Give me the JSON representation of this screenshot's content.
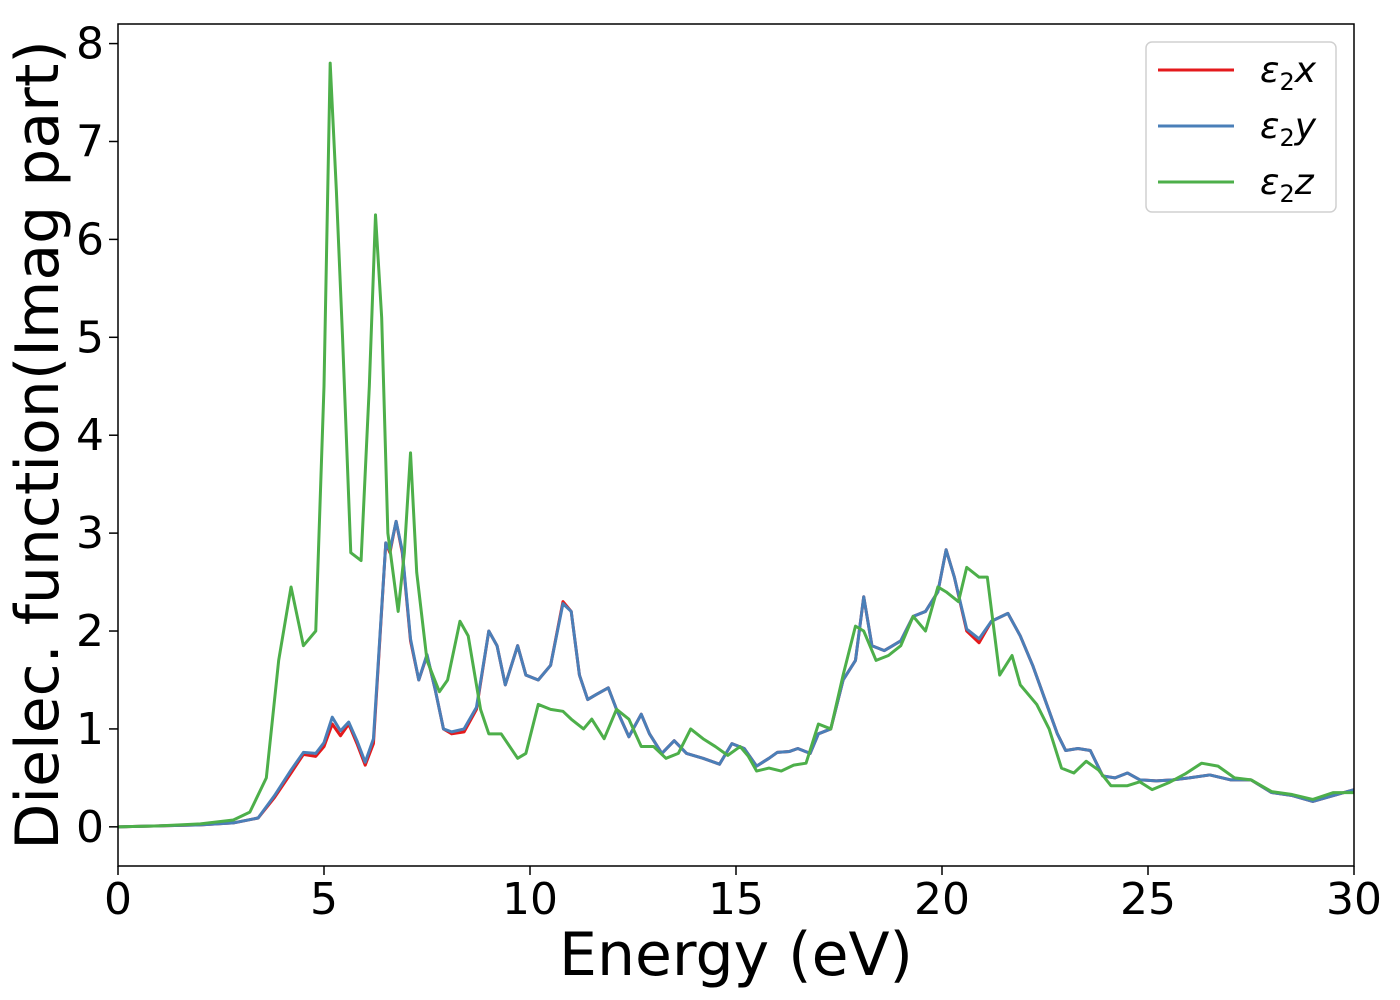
{
  "chart_data": {
    "type": "line",
    "title": "",
    "xlabel": "Energy (eV)",
    "ylabel": "Dielec. function(Imag part)",
    "xlim": [
      0,
      30
    ],
    "ylim": [
      -0.4,
      8.2
    ],
    "xticks": [
      0,
      5,
      10,
      15,
      20,
      25,
      30
    ],
    "yticks": [
      0,
      1,
      2,
      3,
      4,
      5,
      6,
      7,
      8
    ],
    "grid": false,
    "legend_position": "top-right",
    "series": [
      {
        "name": "ε₂x",
        "legend_base": "ε",
        "legend_sub": "2",
        "legend_suffix": "x",
        "color": "#e41a1c",
        "points": [
          [
            0,
            0
          ],
          [
            1,
            0.01
          ],
          [
            2,
            0.02
          ],
          [
            2.8,
            0.04
          ],
          [
            3.4,
            0.09
          ],
          [
            3.8,
            0.3
          ],
          [
            4.2,
            0.55
          ],
          [
            4.5,
            0.74
          ],
          [
            4.8,
            0.72
          ],
          [
            5.0,
            0.82
          ],
          [
            5.2,
            1.05
          ],
          [
            5.4,
            0.93
          ],
          [
            5.6,
            1.05
          ],
          [
            5.8,
            0.85
          ],
          [
            6.0,
            0.63
          ],
          [
            6.2,
            0.85
          ],
          [
            6.5,
            2.9
          ],
          [
            6.6,
            2.8
          ],
          [
            6.75,
            3.12
          ],
          [
            6.9,
            2.8
          ],
          [
            7.1,
            1.9
          ],
          [
            7.3,
            1.5
          ],
          [
            7.5,
            1.75
          ],
          [
            7.7,
            1.4
          ],
          [
            7.9,
            1.0
          ],
          [
            8.1,
            0.95
          ],
          [
            8.4,
            0.97
          ],
          [
            8.7,
            1.2
          ],
          [
            9.0,
            2.0
          ],
          [
            9.2,
            1.85
          ],
          [
            9.4,
            1.45
          ],
          [
            9.7,
            1.85
          ],
          [
            9.9,
            1.55
          ],
          [
            10.2,
            1.5
          ],
          [
            10.5,
            1.65
          ],
          [
            10.8,
            2.3
          ],
          [
            11.0,
            2.2
          ],
          [
            11.2,
            1.55
          ],
          [
            11.4,
            1.3
          ],
          [
            11.6,
            1.35
          ],
          [
            11.9,
            1.42
          ],
          [
            12.1,
            1.2
          ],
          [
            12.4,
            0.92
          ],
          [
            12.7,
            1.15
          ],
          [
            12.9,
            0.95
          ],
          [
            13.2,
            0.75
          ],
          [
            13.5,
            0.88
          ],
          [
            13.8,
            0.75
          ],
          [
            14.2,
            0.7
          ],
          [
            14.6,
            0.64
          ],
          [
            14.9,
            0.85
          ],
          [
            15.2,
            0.8
          ],
          [
            15.5,
            0.62
          ],
          [
            15.8,
            0.7
          ],
          [
            16.0,
            0.76
          ],
          [
            16.3,
            0.77
          ],
          [
            16.5,
            0.8
          ],
          [
            16.8,
            0.75
          ],
          [
            17.0,
            0.95
          ],
          [
            17.3,
            1.0
          ],
          [
            17.6,
            1.5
          ],
          [
            17.9,
            1.7
          ],
          [
            18.1,
            2.35
          ],
          [
            18.3,
            1.85
          ],
          [
            18.6,
            1.8
          ],
          [
            19.0,
            1.9
          ],
          [
            19.3,
            2.15
          ],
          [
            19.6,
            2.2
          ],
          [
            19.9,
            2.4
          ],
          [
            20.1,
            2.83
          ],
          [
            20.3,
            2.55
          ],
          [
            20.6,
            2.0
          ],
          [
            20.9,
            1.88
          ],
          [
            21.2,
            2.1
          ],
          [
            21.6,
            2.18
          ],
          [
            21.9,
            1.95
          ],
          [
            22.2,
            1.65
          ],
          [
            22.5,
            1.3
          ],
          [
            22.8,
            0.95
          ],
          [
            23.0,
            0.78
          ],
          [
            23.3,
            0.8
          ],
          [
            23.6,
            0.78
          ],
          [
            23.9,
            0.52
          ],
          [
            24.2,
            0.5
          ],
          [
            24.5,
            0.55
          ],
          [
            24.8,
            0.48
          ],
          [
            25.2,
            0.47
          ],
          [
            25.6,
            0.48
          ],
          [
            26.0,
            0.5
          ],
          [
            26.5,
            0.53
          ],
          [
            27.0,
            0.48
          ],
          [
            27.5,
            0.48
          ],
          [
            28.0,
            0.35
          ],
          [
            28.5,
            0.32
          ],
          [
            29.0,
            0.26
          ],
          [
            29.5,
            0.32
          ],
          [
            30.0,
            0.38
          ]
        ]
      },
      {
        "name": "ε₂y",
        "legend_base": "ε",
        "legend_sub": "2",
        "legend_suffix": "y",
        "color": "#4a7fb8",
        "points": [
          [
            0,
            0
          ],
          [
            1,
            0.01
          ],
          [
            2,
            0.02
          ],
          [
            2.8,
            0.04
          ],
          [
            3.4,
            0.09
          ],
          [
            3.8,
            0.32
          ],
          [
            4.2,
            0.58
          ],
          [
            4.5,
            0.76
          ],
          [
            4.8,
            0.75
          ],
          [
            5.0,
            0.86
          ],
          [
            5.2,
            1.12
          ],
          [
            5.4,
            0.98
          ],
          [
            5.6,
            1.07
          ],
          [
            5.8,
            0.88
          ],
          [
            6.0,
            0.66
          ],
          [
            6.2,
            0.9
          ],
          [
            6.5,
            2.9
          ],
          [
            6.6,
            2.82
          ],
          [
            6.75,
            3.12
          ],
          [
            6.9,
            2.82
          ],
          [
            7.1,
            1.92
          ],
          [
            7.3,
            1.5
          ],
          [
            7.5,
            1.76
          ],
          [
            7.7,
            1.4
          ],
          [
            7.9,
            1.0
          ],
          [
            8.1,
            0.97
          ],
          [
            8.4,
            1.0
          ],
          [
            8.7,
            1.22
          ],
          [
            9.0,
            2.0
          ],
          [
            9.2,
            1.85
          ],
          [
            9.4,
            1.45
          ],
          [
            9.7,
            1.85
          ],
          [
            9.9,
            1.55
          ],
          [
            10.2,
            1.5
          ],
          [
            10.5,
            1.65
          ],
          [
            10.8,
            2.28
          ],
          [
            11.0,
            2.2
          ],
          [
            11.2,
            1.55
          ],
          [
            11.4,
            1.3
          ],
          [
            11.6,
            1.35
          ],
          [
            11.9,
            1.42
          ],
          [
            12.1,
            1.2
          ],
          [
            12.4,
            0.92
          ],
          [
            12.7,
            1.15
          ],
          [
            12.9,
            0.95
          ],
          [
            13.2,
            0.75
          ],
          [
            13.5,
            0.88
          ],
          [
            13.8,
            0.75
          ],
          [
            14.2,
            0.7
          ],
          [
            14.6,
            0.64
          ],
          [
            14.9,
            0.85
          ],
          [
            15.2,
            0.8
          ],
          [
            15.5,
            0.62
          ],
          [
            15.8,
            0.7
          ],
          [
            16.0,
            0.76
          ],
          [
            16.3,
            0.77
          ],
          [
            16.5,
            0.8
          ],
          [
            16.8,
            0.75
          ],
          [
            17.0,
            0.95
          ],
          [
            17.3,
            1.0
          ],
          [
            17.6,
            1.5
          ],
          [
            17.9,
            1.7
          ],
          [
            18.1,
            2.35
          ],
          [
            18.3,
            1.85
          ],
          [
            18.6,
            1.8
          ],
          [
            19.0,
            1.9
          ],
          [
            19.3,
            2.15
          ],
          [
            19.6,
            2.2
          ],
          [
            19.9,
            2.4
          ],
          [
            20.1,
            2.83
          ],
          [
            20.3,
            2.55
          ],
          [
            20.6,
            2.02
          ],
          [
            20.9,
            1.92
          ],
          [
            21.2,
            2.1
          ],
          [
            21.6,
            2.18
          ],
          [
            21.9,
            1.95
          ],
          [
            22.2,
            1.65
          ],
          [
            22.5,
            1.3
          ],
          [
            22.8,
            0.95
          ],
          [
            23.0,
            0.78
          ],
          [
            23.3,
            0.8
          ],
          [
            23.6,
            0.78
          ],
          [
            23.9,
            0.52
          ],
          [
            24.2,
            0.5
          ],
          [
            24.5,
            0.55
          ],
          [
            24.8,
            0.48
          ],
          [
            25.2,
            0.47
          ],
          [
            25.6,
            0.48
          ],
          [
            26.0,
            0.5
          ],
          [
            26.5,
            0.53
          ],
          [
            27.0,
            0.48
          ],
          [
            27.5,
            0.48
          ],
          [
            28.0,
            0.35
          ],
          [
            28.5,
            0.32
          ],
          [
            29.0,
            0.26
          ],
          [
            29.5,
            0.32
          ],
          [
            30.0,
            0.38
          ]
        ]
      },
      {
        "name": "ε₂z",
        "legend_base": "ε",
        "legend_sub": "2",
        "legend_suffix": "z",
        "color": "#4daf4a",
        "points": [
          [
            0,
            0
          ],
          [
            1,
            0.01
          ],
          [
            2,
            0.03
          ],
          [
            2.8,
            0.07
          ],
          [
            3.2,
            0.15
          ],
          [
            3.6,
            0.5
          ],
          [
            3.9,
            1.7
          ],
          [
            4.2,
            2.45
          ],
          [
            4.5,
            1.85
          ],
          [
            4.8,
            2.0
          ],
          [
            5.0,
            4.5
          ],
          [
            5.15,
            7.8
          ],
          [
            5.3,
            6.5
          ],
          [
            5.45,
            5.0
          ],
          [
            5.65,
            2.8
          ],
          [
            5.9,
            2.72
          ],
          [
            6.1,
            4.5
          ],
          [
            6.25,
            6.25
          ],
          [
            6.4,
            5.2
          ],
          [
            6.55,
            3.0
          ],
          [
            6.8,
            2.2
          ],
          [
            6.95,
            2.8
          ],
          [
            7.1,
            3.82
          ],
          [
            7.25,
            2.6
          ],
          [
            7.5,
            1.7
          ],
          [
            7.8,
            1.38
          ],
          [
            8.0,
            1.5
          ],
          [
            8.3,
            2.1
          ],
          [
            8.5,
            1.95
          ],
          [
            8.8,
            1.2
          ],
          [
            9.0,
            0.95
          ],
          [
            9.3,
            0.95
          ],
          [
            9.7,
            0.7
          ],
          [
            9.9,
            0.75
          ],
          [
            10.2,
            1.25
          ],
          [
            10.5,
            1.2
          ],
          [
            10.8,
            1.18
          ],
          [
            11.0,
            1.1
          ],
          [
            11.3,
            1.0
          ],
          [
            11.5,
            1.1
          ],
          [
            11.8,
            0.9
          ],
          [
            12.1,
            1.2
          ],
          [
            12.4,
            1.1
          ],
          [
            12.7,
            0.82
          ],
          [
            13.0,
            0.82
          ],
          [
            13.3,
            0.7
          ],
          [
            13.6,
            0.75
          ],
          [
            13.9,
            1.0
          ],
          [
            14.2,
            0.9
          ],
          [
            14.5,
            0.82
          ],
          [
            14.8,
            0.73
          ],
          [
            15.1,
            0.82
          ],
          [
            15.3,
            0.72
          ],
          [
            15.5,
            0.57
          ],
          [
            15.8,
            0.6
          ],
          [
            16.1,
            0.57
          ],
          [
            16.4,
            0.63
          ],
          [
            16.7,
            0.65
          ],
          [
            17.0,
            1.05
          ],
          [
            17.3,
            1.0
          ],
          [
            17.6,
            1.55
          ],
          [
            17.9,
            2.05
          ],
          [
            18.1,
            2.0
          ],
          [
            18.4,
            1.7
          ],
          [
            18.7,
            1.75
          ],
          [
            19.0,
            1.85
          ],
          [
            19.3,
            2.15
          ],
          [
            19.6,
            2.0
          ],
          [
            19.9,
            2.45
          ],
          [
            20.1,
            2.4
          ],
          [
            20.4,
            2.3
          ],
          [
            20.6,
            2.65
          ],
          [
            20.9,
            2.55
          ],
          [
            21.1,
            2.55
          ],
          [
            21.4,
            1.55
          ],
          [
            21.7,
            1.75
          ],
          [
            21.9,
            1.45
          ],
          [
            22.3,
            1.25
          ],
          [
            22.6,
            1.0
          ],
          [
            22.9,
            0.6
          ],
          [
            23.2,
            0.55
          ],
          [
            23.5,
            0.67
          ],
          [
            23.8,
            0.58
          ],
          [
            24.1,
            0.42
          ],
          [
            24.5,
            0.42
          ],
          [
            24.8,
            0.46
          ],
          [
            25.1,
            0.38
          ],
          [
            25.5,
            0.45
          ],
          [
            25.9,
            0.54
          ],
          [
            26.3,
            0.65
          ],
          [
            26.7,
            0.62
          ],
          [
            27.1,
            0.5
          ],
          [
            27.5,
            0.48
          ],
          [
            28.0,
            0.36
          ],
          [
            28.5,
            0.33
          ],
          [
            29.0,
            0.28
          ],
          [
            29.5,
            0.35
          ],
          [
            30.0,
            0.35
          ]
        ]
      }
    ]
  }
}
